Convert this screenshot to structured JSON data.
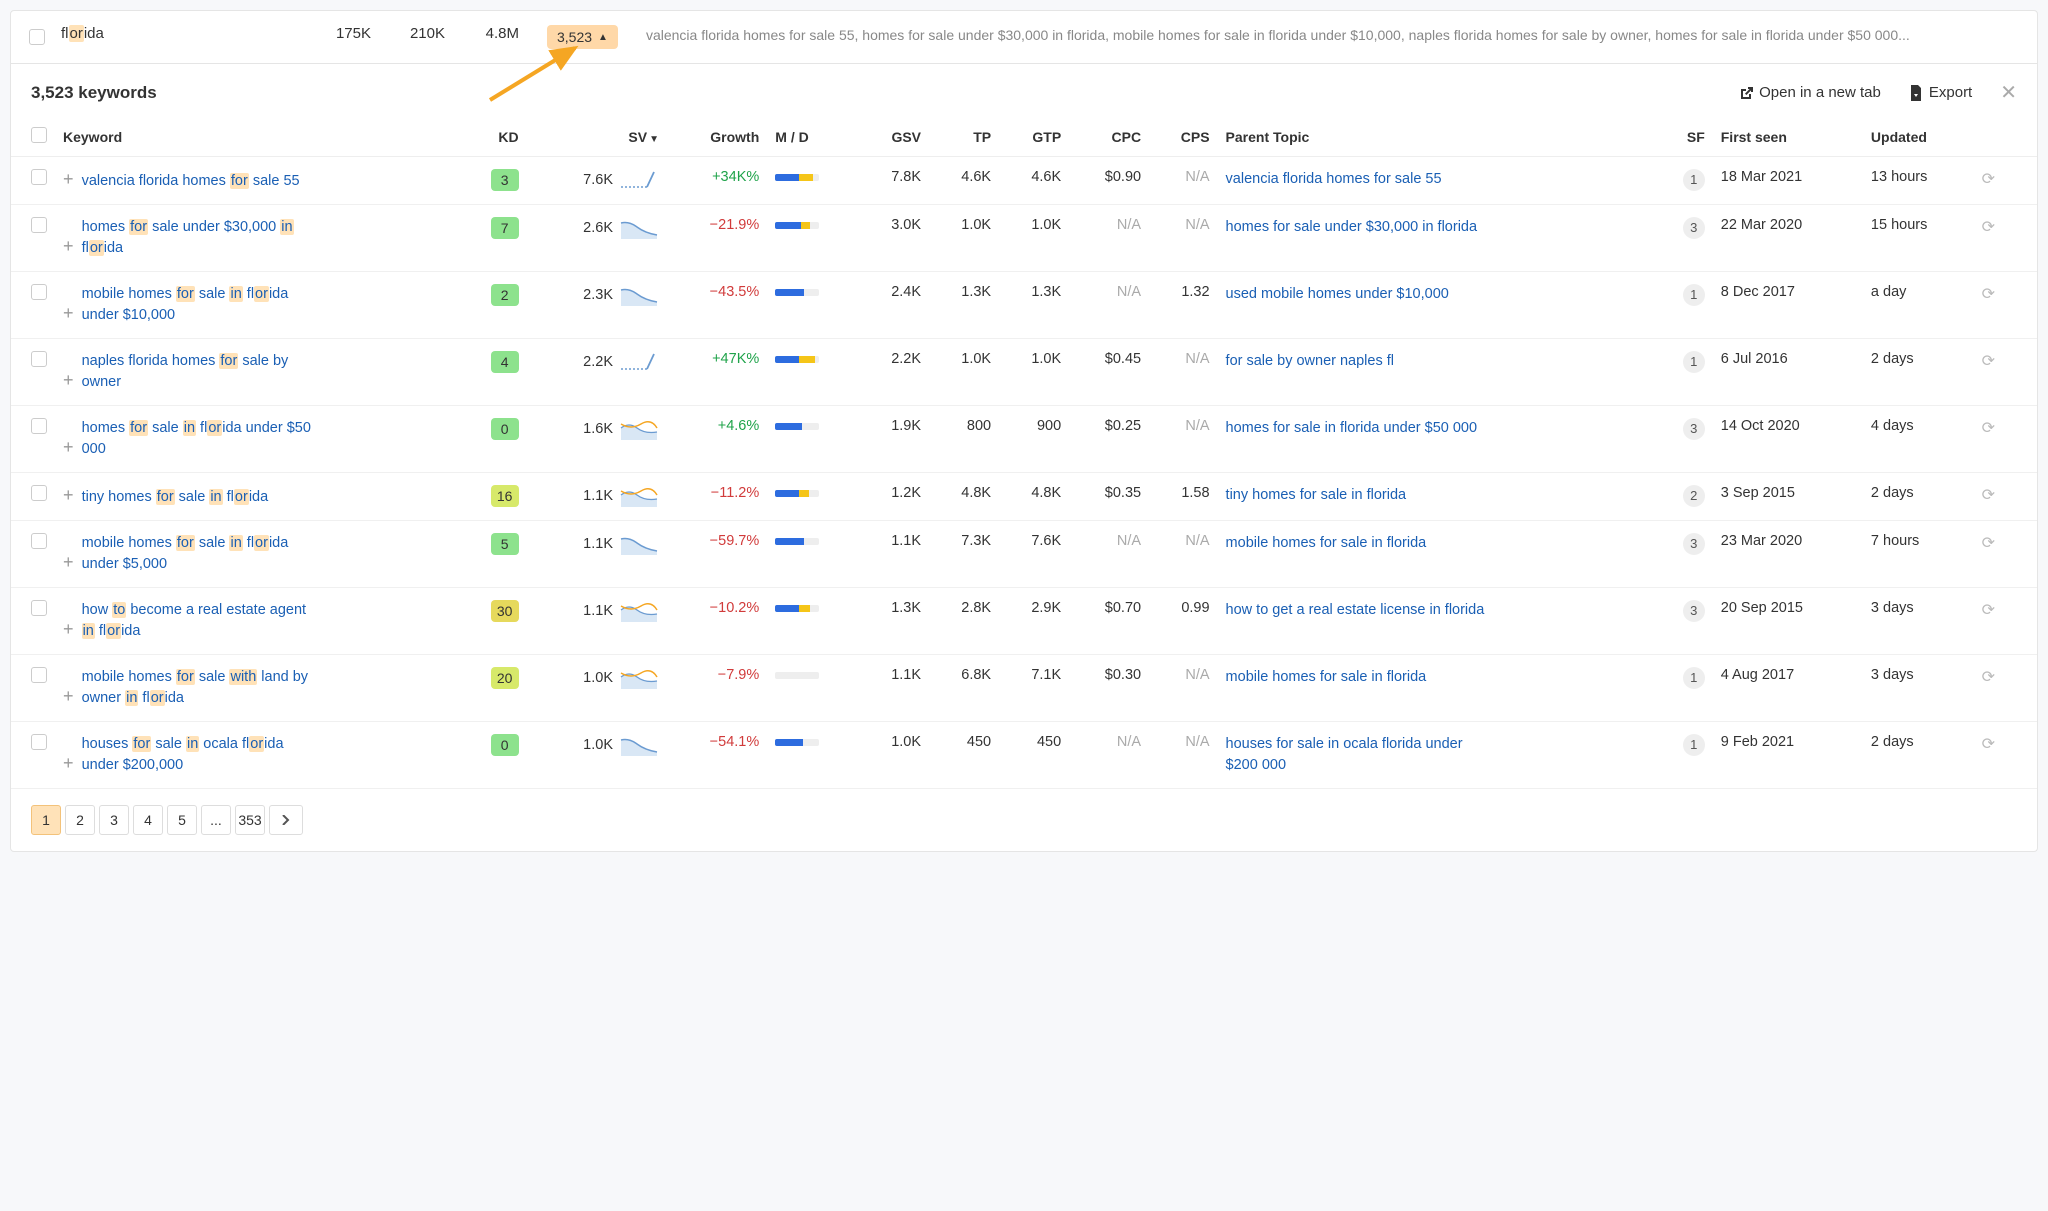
{
  "topRow": {
    "keyword_html": "fl<span class='hl'>or</span>ida",
    "nums": [
      "175K",
      "210K",
      "4.8M"
    ],
    "count": "3,523",
    "desc": "valencia florida homes for sale 55, homes for sale under $30,000 in florida, mobile homes for sale in florida under $10,000, naples florida homes for sale by owner, homes for sale in florida under $50 000..."
  },
  "arrow_color": "#f5a623",
  "panel": {
    "title": "3,523 keywords",
    "open_new_tab": "Open in a new tab",
    "export": "Export"
  },
  "columns": {
    "keyword": "Keyword",
    "kd": "KD",
    "sv": "SV",
    "growth": "Growth",
    "md": "M / D",
    "gsv": "GSV",
    "tp": "TP",
    "gtp": "GTP",
    "cpc": "CPC",
    "cps": "CPS",
    "parent": "Parent Topic",
    "sf": "SF",
    "first_seen": "First seen",
    "updated": "Updated"
  },
  "kd_color_scale": [
    {
      "max": 9,
      "cls": "kdc-0"
    },
    {
      "max": 15,
      "cls": "kdc-1"
    },
    {
      "max": 25,
      "cls": "kdc-2"
    },
    {
      "max": 100,
      "cls": "kdc-3"
    }
  ],
  "spark_colors": {
    "line": "#6b9bd1",
    "fill": "#d9e7f5",
    "orange": "#f5a623"
  },
  "md_colors": {
    "blue": "#2d6cdf",
    "yellow": "#f5c518"
  },
  "rows": [
    {
      "kw_html": "valencia florida homes <span class='hl'>for</span> sale 55",
      "kd": 3,
      "sv": "7.6K",
      "spark": "dotted-up",
      "growth": "+34K%",
      "growth_sign": "pos",
      "md": {
        "b": 55,
        "y": 30
      },
      "gsv": "7.8K",
      "tp": "4.6K",
      "gtp": "4.6K",
      "cpc": "$0.90",
      "cps": "N/A",
      "parent": "valencia florida homes for sale 55",
      "sf": 1,
      "first_seen": "18 Mar 2021",
      "updated": "13 hours"
    },
    {
      "kw_html": "homes <span class='hl'>for</span> sale under $30,000 <span class='hl'>in</span> fl<span class='hl'>or</span>ida",
      "kd": 7,
      "sv": "2.6K",
      "spark": "fill-down",
      "growth": "−21.9%",
      "growth_sign": "neg",
      "md": {
        "b": 58,
        "y": 20
      },
      "gsv": "3.0K",
      "tp": "1.0K",
      "gtp": "1.0K",
      "cpc": "N/A",
      "cps": "N/A",
      "parent": "homes for sale under $30,000 in florida",
      "sf": 3,
      "first_seen": "22 Mar 2020",
      "updated": "15 hours"
    },
    {
      "kw_html": "mobile homes <span class='hl'>for</span> sale <span class='hl'>in</span> fl<span class='hl'>or</span>ida under $10,000",
      "kd": 2,
      "sv": "2.3K",
      "spark": "fill-down",
      "growth": "−43.5%",
      "growth_sign": "neg",
      "md": {
        "b": 65,
        "y": 0
      },
      "gsv": "2.4K",
      "tp": "1.3K",
      "gtp": "1.3K",
      "cpc": "N/A",
      "cps": "1.32",
      "parent": "used mobile homes under $10,000",
      "sf": 1,
      "first_seen": "8 Dec 2017",
      "updated": "a day"
    },
    {
      "kw_html": "naples florida homes <span class='hl'>for</span> sale by owner",
      "kd": 4,
      "sv": "2.2K",
      "spark": "dotted-up",
      "growth": "+47K%",
      "growth_sign": "pos",
      "md": {
        "b": 55,
        "y": 35
      },
      "gsv": "2.2K",
      "tp": "1.0K",
      "gtp": "1.0K",
      "cpc": "$0.45",
      "cps": "N/A",
      "parent": "for sale by owner naples fl",
      "sf": 1,
      "first_seen": "6 Jul 2016",
      "updated": "2 days"
    },
    {
      "kw_html": "homes <span class='hl'>for</span> sale <span class='hl'>in</span> fl<span class='hl'>or</span>ida under $50 000",
      "kd": 0,
      "sv": "1.6K",
      "spark": "two-line",
      "growth": "+4.6%",
      "growth_sign": "pos",
      "md": {
        "b": 60,
        "y": 0
      },
      "gsv": "1.9K",
      "tp": "800",
      "gtp": "900",
      "cpc": "$0.25",
      "cps": "N/A",
      "parent": "homes for sale in florida under $50 000",
      "sf": 3,
      "first_seen": "14 Oct 2020",
      "updated": "4 days"
    },
    {
      "kw_html": "tiny homes <span class='hl'>for</span> sale <span class='hl'>in</span> fl<span class='hl'>or</span>ida",
      "kd": 16,
      "sv": "1.1K",
      "spark": "two-line",
      "growth": "−11.2%",
      "growth_sign": "neg",
      "md": {
        "b": 55,
        "y": 22
      },
      "gsv": "1.2K",
      "tp": "4.8K",
      "gtp": "4.8K",
      "cpc": "$0.35",
      "cps": "1.58",
      "parent": "tiny homes for sale in florida",
      "sf": 2,
      "first_seen": "3 Sep 2015",
      "updated": "2 days"
    },
    {
      "kw_html": "mobile homes <span class='hl'>for</span> sale <span class='hl'>in</span> fl<span class='hl'>or</span>ida under $5,000",
      "kd": 5,
      "sv": "1.1K",
      "spark": "fill-down",
      "growth": "−59.7%",
      "growth_sign": "neg",
      "md": {
        "b": 65,
        "y": 0
      },
      "gsv": "1.1K",
      "tp": "7.3K",
      "gtp": "7.6K",
      "cpc": "N/A",
      "cps": "N/A",
      "parent": "mobile homes for sale in florida",
      "sf": 3,
      "first_seen": "23 Mar 2020",
      "updated": "7 hours"
    },
    {
      "kw_html": "how <span class='hl'>to</span> become a real estate agent <span class='hl'>in</span> fl<span class='hl'>or</span>ida",
      "kd": 30,
      "sv": "1.1K",
      "spark": "two-line",
      "growth": "−10.2%",
      "growth_sign": "neg",
      "md": {
        "b": 55,
        "y": 25
      },
      "gsv": "1.3K",
      "tp": "2.8K",
      "gtp": "2.9K",
      "cpc": "$0.70",
      "cps": "0.99",
      "parent": "how to get a real estate license in florida",
      "sf": 3,
      "first_seen": "20 Sep 2015",
      "updated": "3 days"
    },
    {
      "kw_html": "mobile homes <span class='hl'>for</span> sale <span class='hl'>with</span> land by owner <span class='hl'>in</span> fl<span class='hl'>or</span>ida",
      "kd": 20,
      "sv": "1.0K",
      "spark": "two-line",
      "growth": "−7.9%",
      "growth_sign": "neg",
      "md": {
        "b": 0,
        "y": 0
      },
      "gsv": "1.1K",
      "tp": "6.8K",
      "gtp": "7.1K",
      "cpc": "$0.30",
      "cps": "N/A",
      "parent": "mobile homes for sale in florida",
      "sf": 1,
      "first_seen": "4 Aug 2017",
      "updated": "3 days"
    },
    {
      "kw_html": "houses <span class='hl'>for</span> sale <span class='hl'>in</span> ocala fl<span class='hl'>or</span>ida under $200,000",
      "kd": 0,
      "sv": "1.0K",
      "spark": "fill-down",
      "growth": "−54.1%",
      "growth_sign": "neg",
      "md": {
        "b": 62,
        "y": 0
      },
      "gsv": "1.0K",
      "tp": "450",
      "gtp": "450",
      "cpc": "N/A",
      "cps": "N/A",
      "parent": "houses for sale in ocala florida under $200 000",
      "sf": 1,
      "first_seen": "9 Feb 2021",
      "updated": "2 days"
    }
  ],
  "pager": {
    "pages": [
      "1",
      "2",
      "3",
      "4",
      "5",
      "...",
      "353"
    ],
    "active": 0
  }
}
